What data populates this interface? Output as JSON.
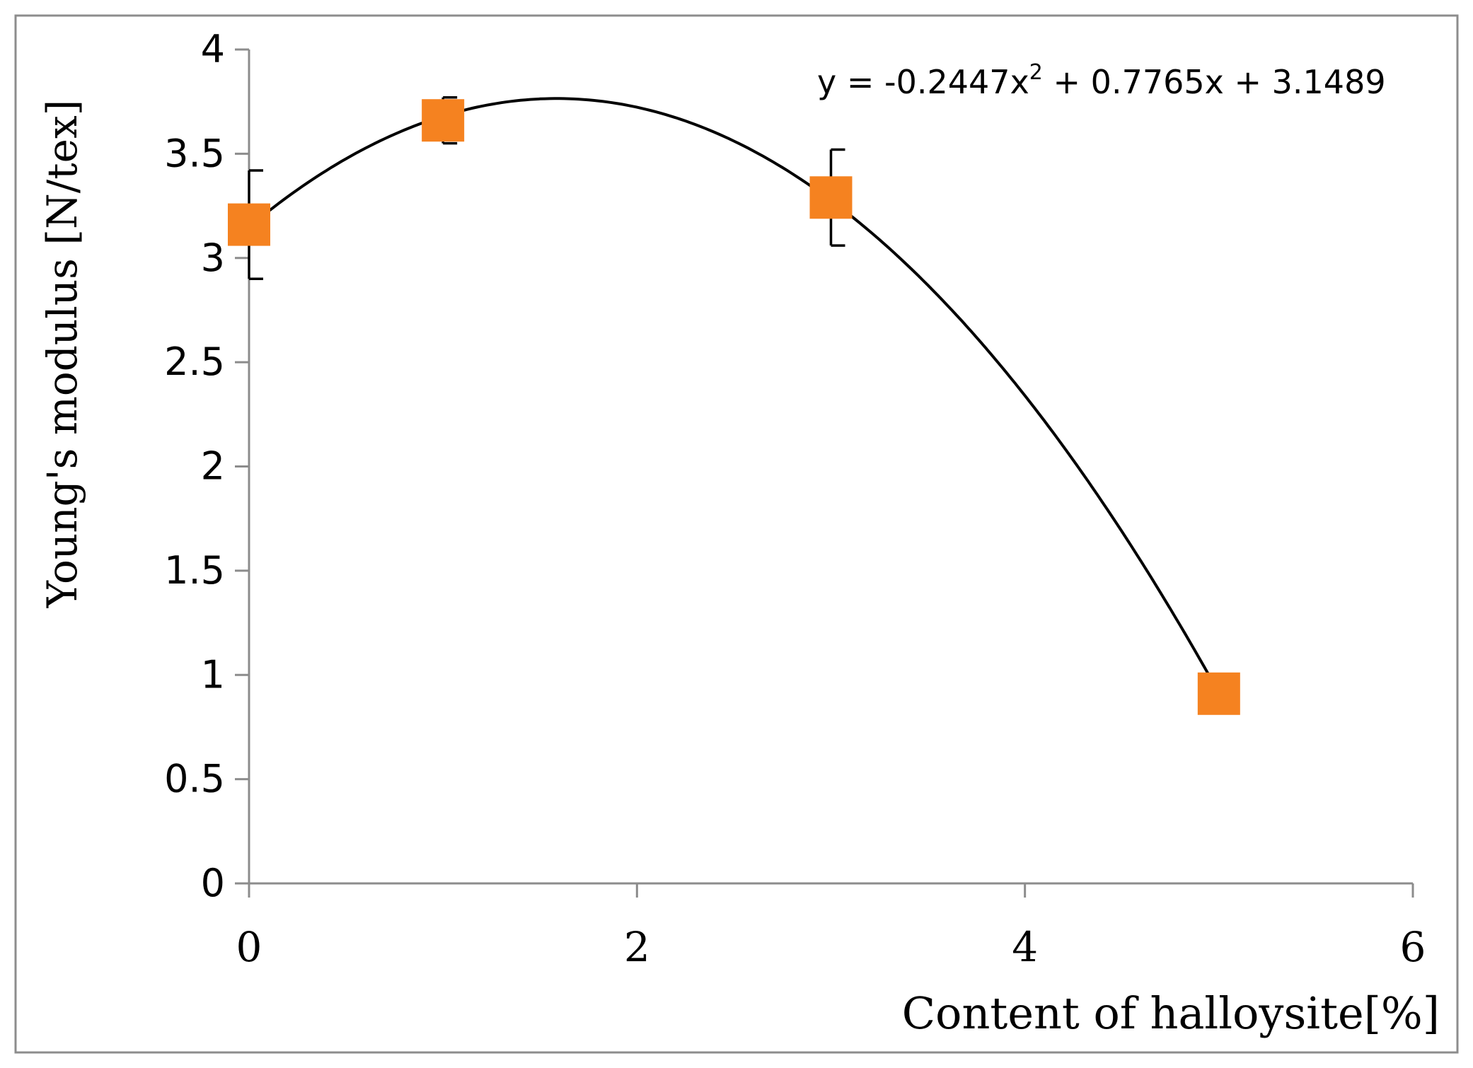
{
  "chart_data": {
    "type": "scatter",
    "title": "",
    "xlabel": "Content of halloysite[%]",
    "ylabel": "Young's modulus [N/tex]",
    "xlim": [
      0,
      6
    ],
    "ylim": [
      0,
      4
    ],
    "xticks": [
      "0",
      "2",
      "4",
      "6"
    ],
    "yticks": [
      "0",
      "0.5",
      "1",
      "1.5",
      "2",
      "2.5",
      "3",
      "3.5",
      "4"
    ],
    "grid": false,
    "legend": "none",
    "marker": "square",
    "marker_color": "#F58220",
    "series": [
      {
        "x": [
          0,
          1,
          3,
          5
        ],
        "y": [
          3.16,
          3.66,
          3.29,
          0.91
        ],
        "error": [
          0.26,
          0.11,
          0.23,
          null
        ]
      }
    ],
    "trendline": {
      "type": "polynomial",
      "order": 2,
      "coefficients": [
        -0.2447,
        0.7765,
        3.1489
      ],
      "x_range": [
        0,
        5
      ],
      "equation_text": {
        "prefix": "y = -0.2447x",
        "exponent": "2",
        "suffix": " + 0.7765x + 3.1489"
      }
    }
  }
}
